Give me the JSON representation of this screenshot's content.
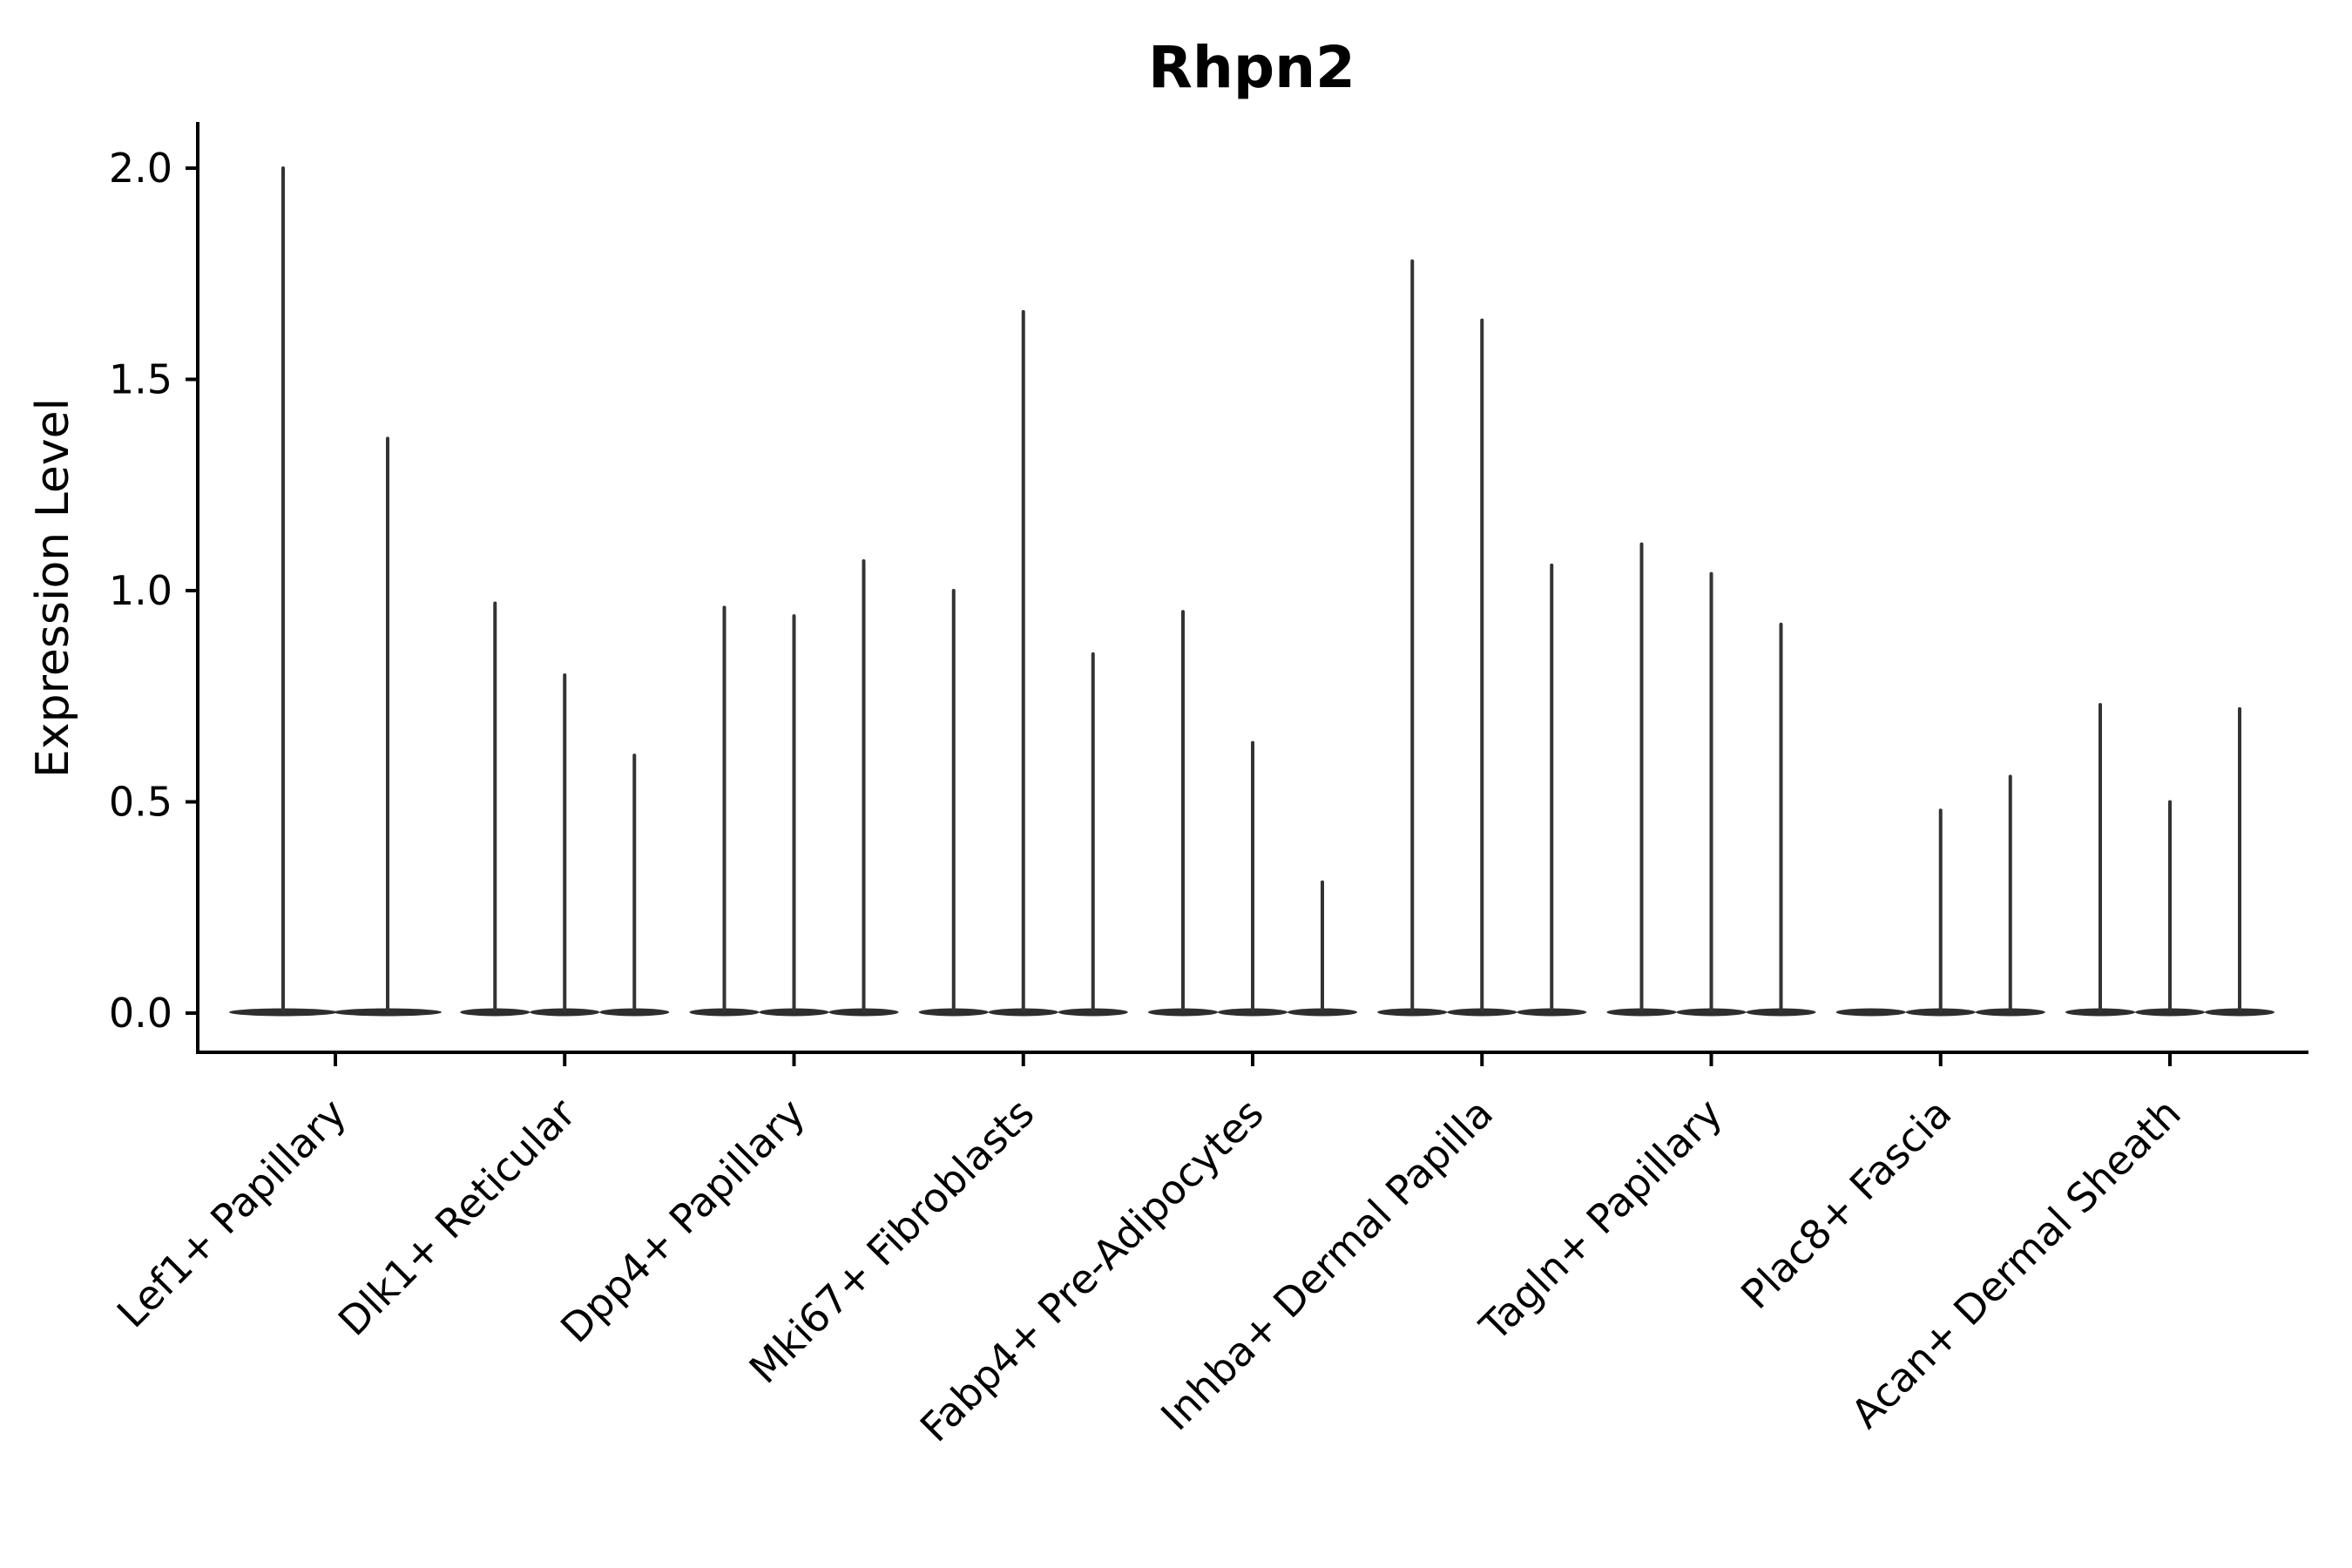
{
  "title": "Rhpn2",
  "y_axis": {
    "label": "Expression Level",
    "tick_labels": [
      "0.0",
      "0.5",
      "1.0",
      "1.5",
      "2.0"
    ],
    "tick_values": [
      0.0,
      0.5,
      1.0,
      1.5,
      2.0
    ]
  },
  "chart_data": {
    "type": "violin",
    "title": "Rhpn2",
    "xlabel": "",
    "ylabel": "Expression Level",
    "ylim": [
      -0.1,
      2.11
    ],
    "yticks": [
      0.0,
      0.5,
      1.0,
      1.5,
      2.0
    ],
    "grid": false,
    "legend": "none",
    "violin_color": "#333333",
    "base_fill_color": "#2e2e2e",
    "note": "Each category shows narrow violins: a flat lens-shaped bulk at expression 0 plus a thin spike reaching the max expression value listed in violin_max.",
    "categories": [
      "Lef1+ Papillary",
      "Dlk1+ Reticular",
      "Dpp4+ Papillary",
      "Mki67+ Fibroblasts",
      "Fabp4+ Pre-Adipocytes",
      "Inhba+ Dermal Papilla",
      "Tagln+ Papillary",
      "Plac8+ Fascia",
      "Acan+ Dermal Sheath"
    ],
    "groups": [
      {
        "label": "Lef1+ Papillary",
        "violin_max": [
          2.0,
          1.36
        ]
      },
      {
        "label": "Dlk1+ Reticular",
        "violin_max": [
          0.97,
          0.8,
          0.61
        ]
      },
      {
        "label": "Dpp4+ Papillary",
        "violin_max": [
          0.96,
          0.94,
          1.07
        ]
      },
      {
        "label": "Mki67+ Fibroblasts",
        "violin_max": [
          1.0,
          1.66,
          0.85
        ]
      },
      {
        "label": "Fabp4+ Pre-Adipocytes",
        "violin_max": [
          0.95,
          0.64,
          0.31
        ]
      },
      {
        "label": "Inhba+ Dermal Papilla",
        "violin_max": [
          1.78,
          1.64,
          1.06
        ]
      },
      {
        "label": "Tagln+ Papillary",
        "violin_max": [
          1.11,
          1.04,
          0.92
        ]
      },
      {
        "label": "Plac8+ Fascia",
        "violin_max": [
          0.0,
          0.48,
          0.56
        ]
      },
      {
        "label": "Acan+ Dermal Sheath",
        "violin_max": [
          0.73,
          0.5,
          0.72
        ]
      }
    ]
  }
}
